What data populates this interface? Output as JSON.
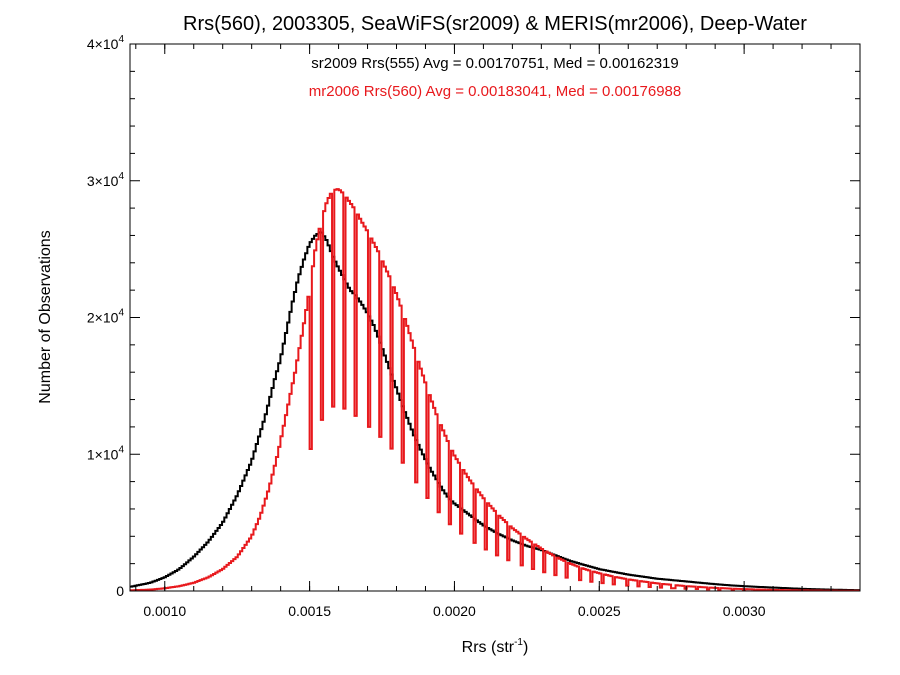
{
  "chart_data": {
    "type": "line",
    "step": true,
    "title": "Rrs(560), 2003305, SeaWiFS(sr2009) & MERIS(mr2006), Deep-Water",
    "xlabel": {
      "text": "Rrs (str",
      "sup": "-1",
      "suffix": ")"
    },
    "ylabel": "Number of Observations",
    "xlim": [
      0.00088,
      0.0034
    ],
    "ylim": [
      0,
      40000
    ],
    "x_ticks": [
      {
        "value": 0.001,
        "label": "0.0010"
      },
      {
        "value": 0.0015,
        "label": "0.0015"
      },
      {
        "value": 0.002,
        "label": "0.0020"
      },
      {
        "value": 0.0025,
        "label": "0.0025"
      },
      {
        "value": 0.003,
        "label": "0.0030"
      }
    ],
    "y_ticks": [
      {
        "value": 0,
        "mant": "0",
        "exp": ""
      },
      {
        "value": 10000,
        "mant": "1×10",
        "exp": "4"
      },
      {
        "value": 20000,
        "mant": "2×10",
        "exp": "4"
      },
      {
        "value": 30000,
        "mant": "3×10",
        "exp": "4"
      },
      {
        "value": 40000,
        "mant": "4×10",
        "exp": "4"
      }
    ],
    "legend_placement": "top-center",
    "annotations": [
      {
        "text": "sr2009 Rrs(555) Avg = 0.00170751, Med = 0.00162319",
        "color": "#000000"
      },
      {
        "text": "mr2006 Rrs(560) Avg = 0.00183041, Med = 0.00176988",
        "color": "#e8191d"
      }
    ],
    "series": [
      {
        "color": "#000000",
        "x": [
          0.00088,
          0.00095,
          0.001,
          0.00105,
          0.0011,
          0.00115,
          0.0012,
          0.00125,
          0.0013,
          0.00135,
          0.00138,
          0.0014,
          0.00142,
          0.00144,
          0.00146,
          0.00148,
          0.0015,
          0.00152,
          0.00154,
          0.00156,
          0.00158,
          0.0016,
          0.00162,
          0.00164,
          0.00166,
          0.00168,
          0.0017,
          0.00172,
          0.00174,
          0.00176,
          0.00178,
          0.0018,
          0.00182,
          0.00184,
          0.00186,
          0.00188,
          0.0019,
          0.00192,
          0.00194,
          0.00196,
          0.00198,
          0.002,
          0.00205,
          0.0021,
          0.00215,
          0.0022,
          0.00225,
          0.0023,
          0.00235,
          0.0024,
          0.00245,
          0.0025,
          0.00255,
          0.0026,
          0.00265,
          0.0027,
          0.00275,
          0.0028,
          0.00285,
          0.0029,
          0.00295,
          0.003,
          0.0031,
          0.0032,
          0.0033,
          0.0034
        ],
        "y": [
          300,
          600,
          1000,
          1600,
          2500,
          3600,
          5000,
          7000,
          9500,
          13000,
          15500,
          17000,
          19000,
          21000,
          22800,
          24200,
          25400,
          26000,
          26300,
          25600,
          24500,
          23600,
          22800,
          22000,
          21600,
          21000,
          20300,
          19500,
          18400,
          17200,
          16000,
          14800,
          13600,
          12500,
          11400,
          10500,
          9600,
          8800,
          8100,
          7400,
          6800,
          6400,
          5600,
          4800,
          4200,
          3700,
          3300,
          3000,
          2600,
          2200,
          1900,
          1600,
          1400,
          1200,
          1050,
          900,
          800,
          700,
          600,
          500,
          420,
          350,
          250,
          160,
          100,
          60
        ]
      },
      {
        "color": "#e8191d",
        "comb_start": 0.0015,
        "comb_step": 4.05e-05,
        "comb_min_ratio": 0.46,
        "x": [
          0.00088,
          0.00095,
          0.001,
          0.00105,
          0.0011,
          0.00115,
          0.0012,
          0.00125,
          0.0013,
          0.00133,
          0.00136,
          0.00139,
          0.00142,
          0.00145,
          0.00148,
          0.0015,
          0.00152,
          0.00154,
          0.00156,
          0.00158,
          0.0016,
          0.00162,
          0.00164,
          0.00166,
          0.00168,
          0.0017,
          0.00172,
          0.00174,
          0.00176,
          0.00178,
          0.0018,
          0.00182,
          0.00184,
          0.00186,
          0.00188,
          0.0019,
          0.00192,
          0.00194,
          0.00196,
          0.00198,
          0.002,
          0.00205,
          0.0021,
          0.00215,
          0.0022,
          0.00225,
          0.0023,
          0.00235,
          0.0024,
          0.00245,
          0.0025,
          0.00255,
          0.0026,
          0.00265,
          0.0027,
          0.00275,
          0.0028,
          0.00285,
          0.0029,
          0.00295,
          0.003,
          0.0031,
          0.0032,
          0.0033,
          0.0034
        ],
        "y": [
          50,
          100,
          200,
          350,
          600,
          1000,
          1600,
          2500,
          4000,
          5500,
          7500,
          10000,
          13000,
          16000,
          19500,
          22000,
          25000,
          27000,
          28500,
          29300,
          29400,
          29000,
          28400,
          27800,
          27000,
          26300,
          25500,
          24700,
          23700,
          22800,
          21700,
          20500,
          19200,
          17800,
          16500,
          15200,
          14000,
          12800,
          11800,
          10800,
          9900,
          8200,
          6800,
          5600,
          4600,
          3800,
          3100,
          2500,
          2000,
          1600,
          1300,
          1050,
          850,
          700,
          560,
          450,
          360,
          290,
          230,
          180,
          140,
          80,
          45,
          25,
          15
        ]
      }
    ]
  }
}
